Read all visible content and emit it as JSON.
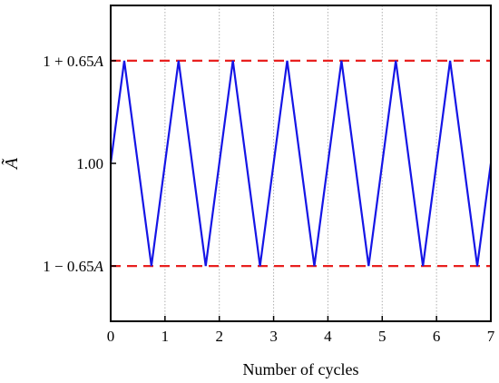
{
  "chart_data": {
    "type": "line",
    "xlabel": "Number of cycles",
    "ylabel": "Ã",
    "xlim": [
      0,
      7
    ],
    "ylim": [
      0.0,
      2.0
    ],
    "grid": "vertical dotted",
    "x_ticks": [
      "0",
      "1",
      "2",
      "3",
      "4",
      "5",
      "6",
      "7"
    ],
    "y_ticks": [
      {
        "value": 1.65,
        "label": "1 + 0.65A"
      },
      {
        "value": 1.0,
        "label": "1.00"
      },
      {
        "value": 0.35,
        "label": "1 − 0.65A"
      }
    ],
    "series": [
      {
        "color": "#1515e6",
        "style": "solid",
        "x": [
          0,
          0.25,
          0.75,
          1.25,
          1.75,
          2.25,
          2.75,
          3.25,
          3.75,
          4.25,
          4.75,
          5.25,
          5.75,
          6.25,
          6.75,
          7
        ],
        "y": [
          1.0,
          1.65,
          0.35,
          1.65,
          0.35,
          1.65,
          0.35,
          1.65,
          0.35,
          1.65,
          0.35,
          1.65,
          0.35,
          1.65,
          0.35,
          1.0
        ]
      }
    ],
    "reference_lines": [
      {
        "y": 1.65,
        "color": "#e8201f",
        "style": "dashed"
      },
      {
        "y": 0.35,
        "color": "#e8201f",
        "style": "dashed"
      }
    ]
  }
}
